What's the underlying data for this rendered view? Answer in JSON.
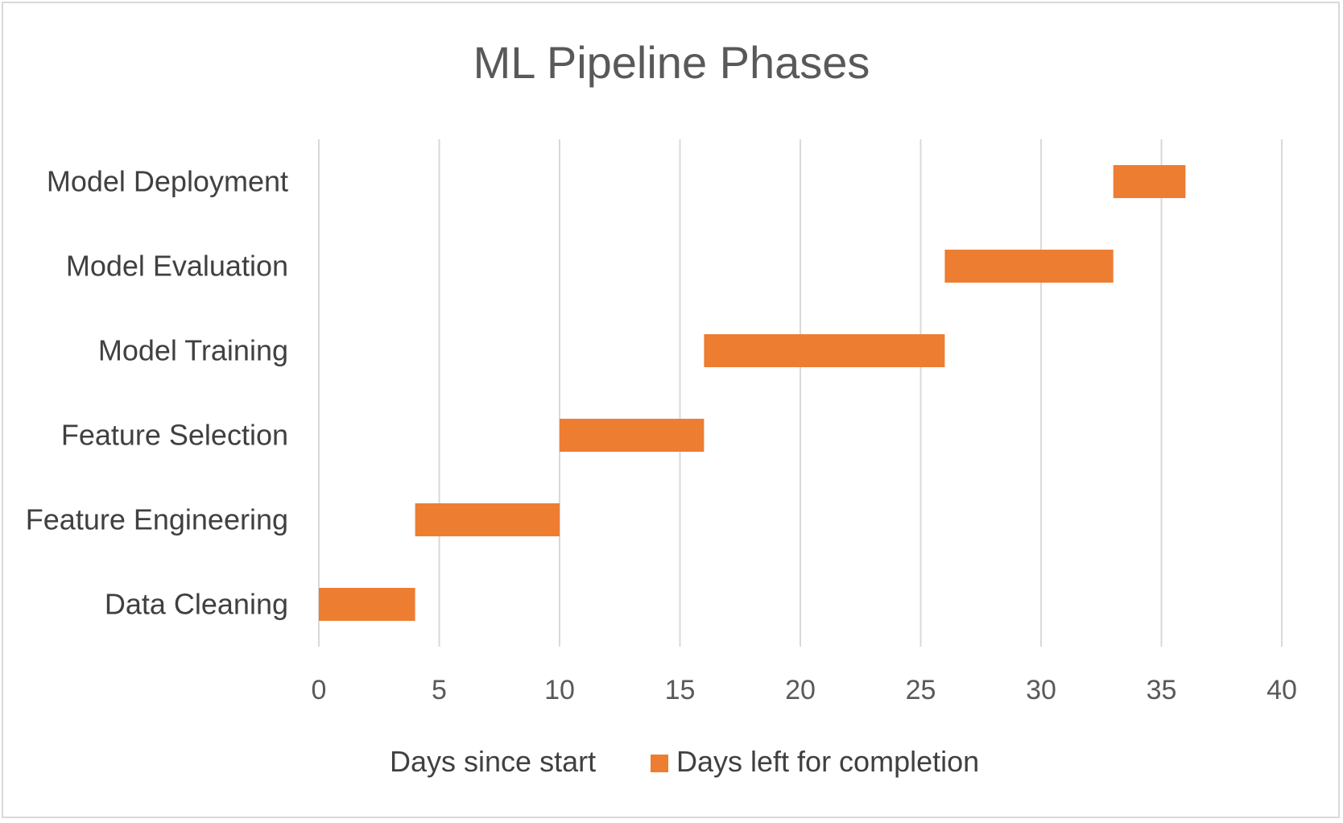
{
  "chart_data": {
    "type": "bar",
    "orientation": "horizontal",
    "stacked": true,
    "title": "ML Pipeline Phases",
    "categories": [
      "Data Cleaning",
      "Feature Engineering",
      "Feature Selection",
      "Model Training",
      "Model Evaluation",
      "Model Deployment"
    ],
    "series": [
      {
        "name": "Days since start",
        "values": [
          0,
          4,
          10,
          16,
          26,
          33
        ],
        "color": "none",
        "visible": false
      },
      {
        "name": "Days left for completion",
        "values": [
          4,
          6,
          6,
          10,
          7,
          3
        ],
        "color": "#ED7D31"
      }
    ],
    "xlim": [
      0,
      40
    ],
    "xticks": [
      0,
      5,
      10,
      15,
      20,
      25,
      30,
      35,
      40
    ],
    "grid": "vertical",
    "legend": "bottom",
    "xlabel": "",
    "ylabel": ""
  }
}
